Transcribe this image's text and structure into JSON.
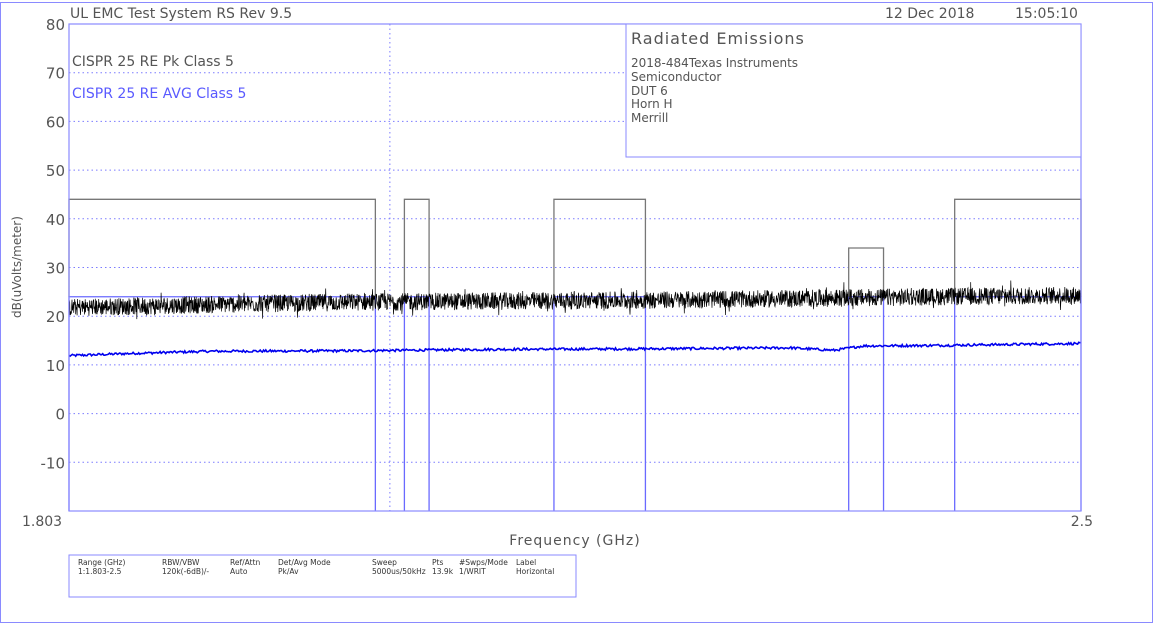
{
  "header": {
    "system": "UL EMC Test System RS Rev 9.5",
    "date": "12 Dec 2018",
    "time": "15:05:10"
  },
  "info_box": {
    "title": "Radiated Emissions",
    "lines": [
      "2018-484Texas Instruments",
      "Semiconductor",
      "DUT 6",
      "Horn H",
      "Merrill"
    ]
  },
  "settings_table": {
    "headers": [
      "Range (GHz)",
      "RBW/VBW",
      "Ref/Attn",
      "Det/Avg Mode",
      "Sweep",
      "Pts",
      "#Swps/Mode",
      "Label"
    ],
    "values": [
      "1:1.803-2.5",
      "120k(-6dB)/-",
      "Auto",
      "Pk/Av",
      "5000us/50kHz",
      "13.9k",
      "1/WRIT",
      "Horizontal"
    ]
  },
  "chart_data": {
    "type": "line",
    "xlabel": "Frequency (GHz)",
    "ylabel": "dB(uVolts/meter)",
    "xlim": [
      1.803,
      2.5
    ],
    "ylim": [
      -20,
      80
    ],
    "x_tick_labels": [
      "1.803",
      "2.5"
    ],
    "y_ticks": [
      80,
      70,
      60,
      50,
      40,
      30,
      20,
      10,
      0,
      -10
    ],
    "grid": true,
    "legend_placement": "top-left",
    "marker_line_x": 2.024,
    "colors": {
      "peak": "#000000",
      "average": "#0000ee",
      "peak_limit": "#777777",
      "avg_limit": "#6a6aff",
      "grid": "#7b7bff",
      "frame": "#8a8aff"
    },
    "series": [
      {
        "name": "CISPR 25 RE Pk Class 5",
        "role": "peak_limit",
        "bands": [
          [
            1.803,
            2.014,
            44
          ],
          [
            2.034,
            2.051,
            44
          ],
          [
            2.137,
            2.2,
            44
          ],
          [
            2.34,
            2.364,
            34
          ],
          [
            2.413,
            2.5,
            44
          ]
        ]
      },
      {
        "name": "CISPR 25 RE AVG Class 5",
        "role": "avg_limit",
        "bands": [
          [
            1.803,
            2.014,
            24
          ],
          [
            2.034,
            2.051,
            24
          ],
          [
            2.137,
            2.2,
            24
          ],
          [
            2.34,
            2.364,
            24
          ],
          [
            2.413,
            2.5,
            24
          ]
        ]
      },
      {
        "role": "peak",
        "x": [
          1.803,
          1.9,
          2.0,
          2.1,
          2.2,
          2.3,
          2.4,
          2.5
        ],
        "y": [
          21.8,
          22.4,
          22.9,
          23.1,
          23.3,
          23.6,
          24.0,
          24.3
        ],
        "noise_db": 1.8
      },
      {
        "role": "average",
        "x": [
          1.803,
          1.85,
          1.9,
          2.0,
          2.1,
          2.2,
          2.3,
          2.33,
          2.35,
          2.4,
          2.5
        ],
        "y": [
          11.9,
          12.4,
          12.8,
          12.9,
          13.2,
          13.3,
          13.5,
          13.0,
          13.9,
          14.0,
          14.4
        ],
        "noise_db": 0.25
      }
    ]
  }
}
